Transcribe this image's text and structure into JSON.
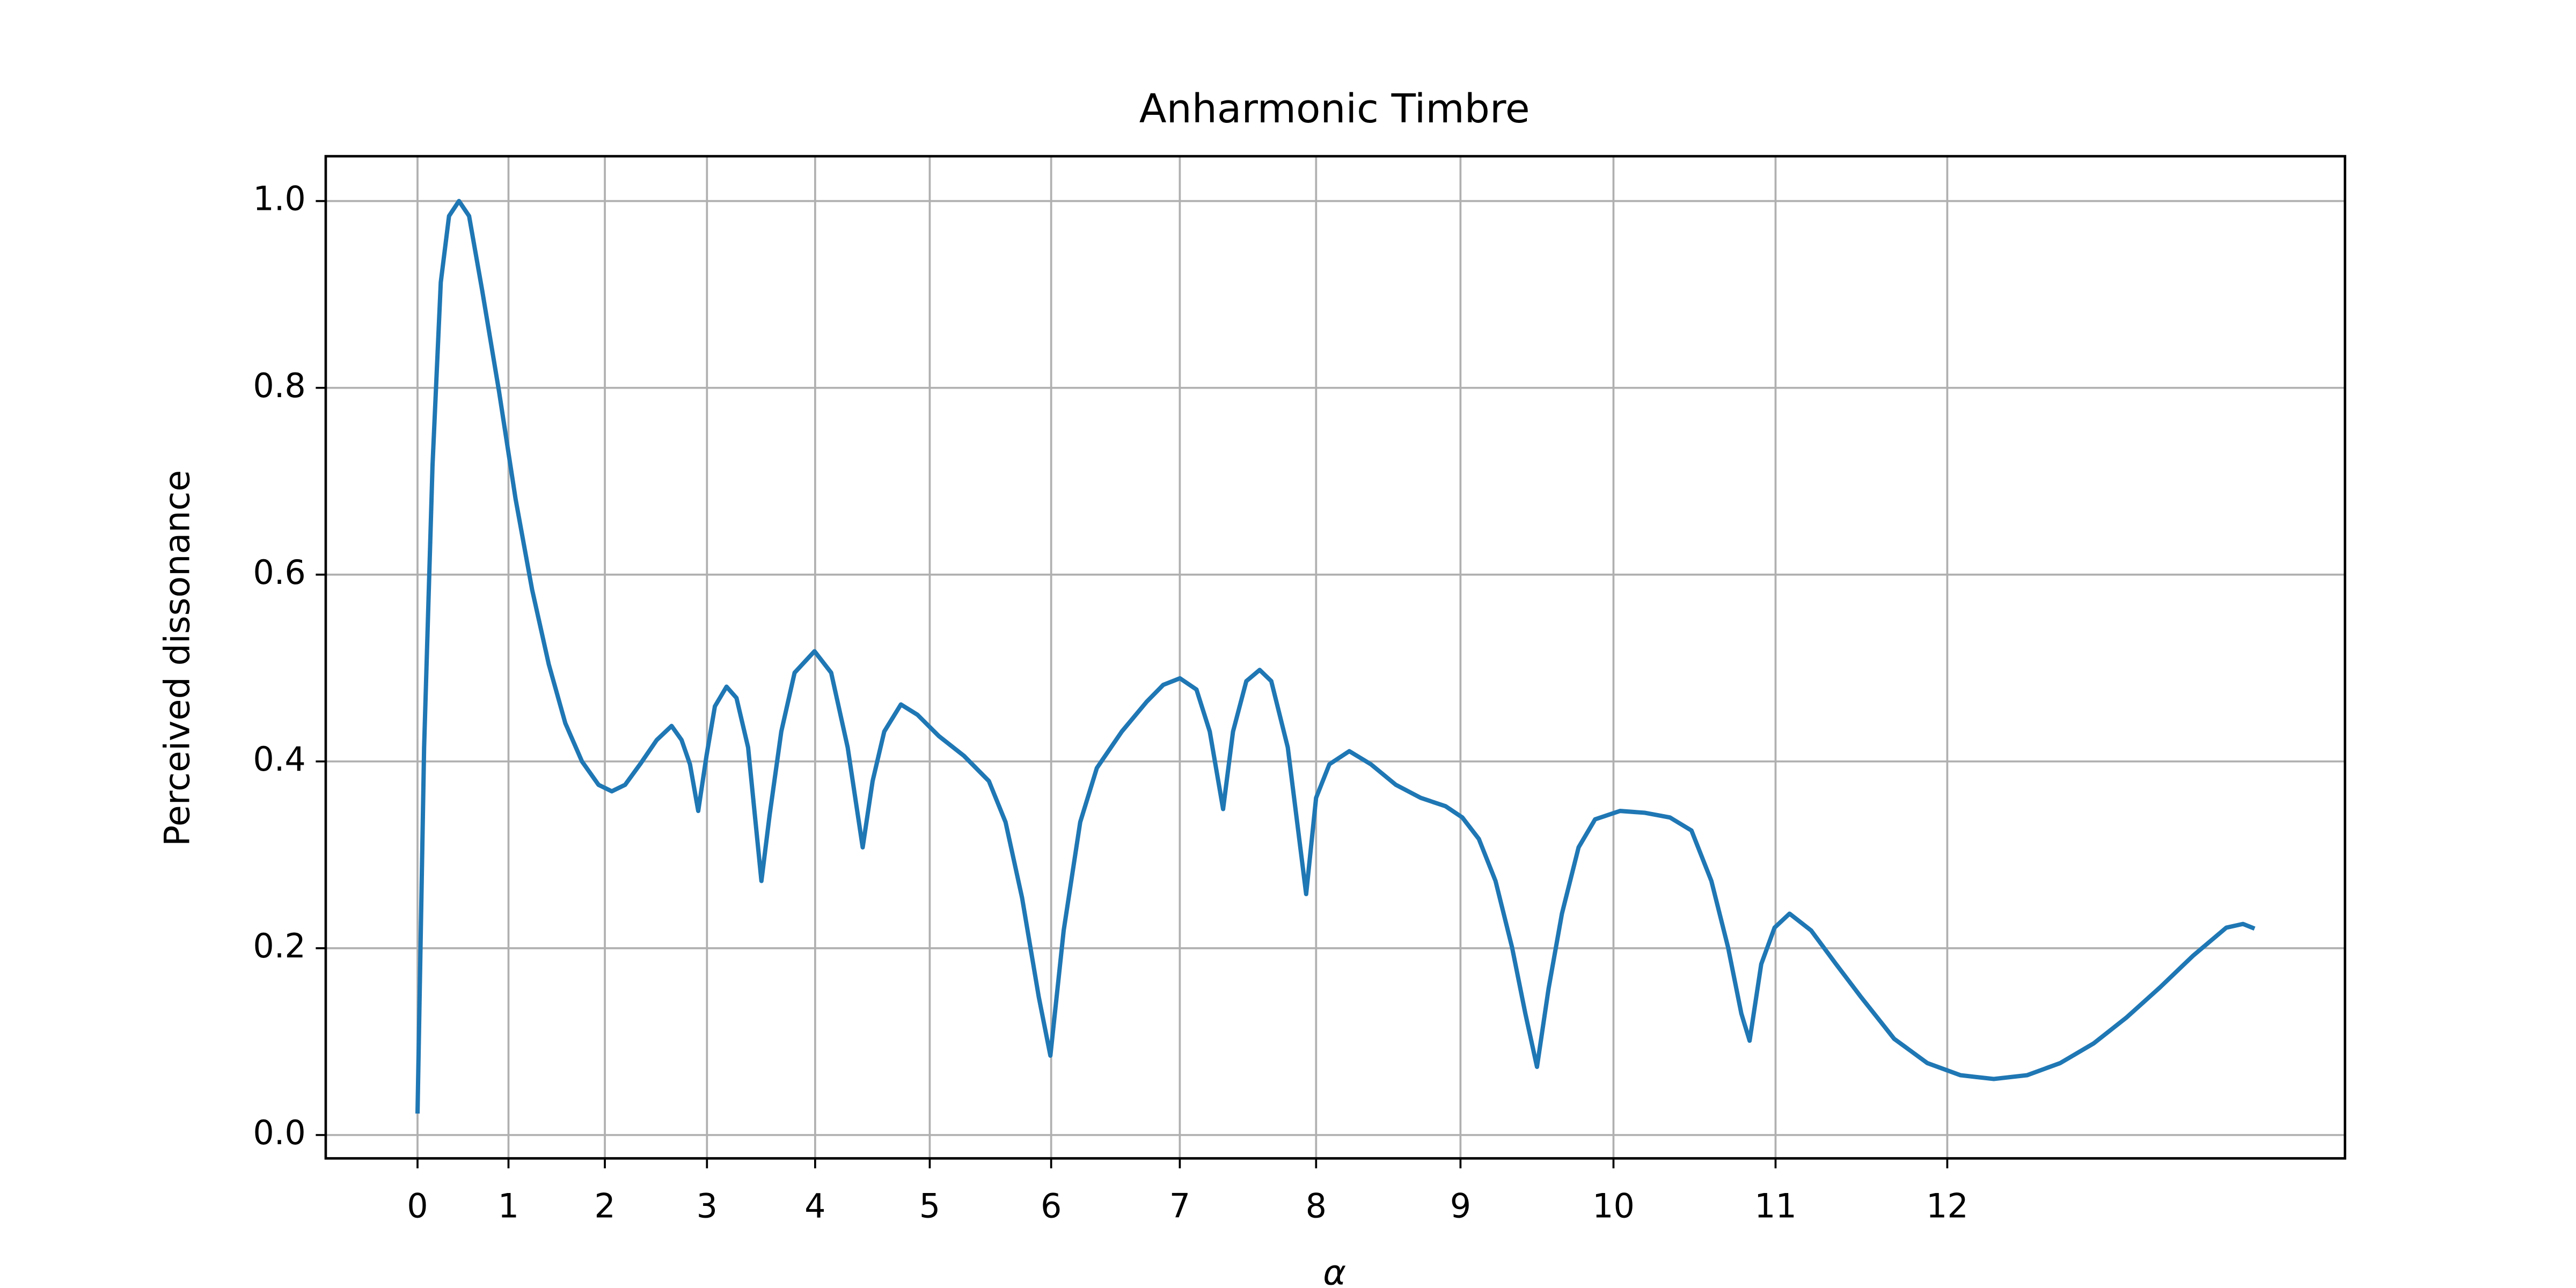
{
  "chart_data": {
    "type": "line",
    "title": "Anharmonic Timbre",
    "x_label": "α",
    "y_label": "Perceived dissonance",
    "x": [
      1.0,
      1.0043,
      1.0098,
      1.0152,
      1.0206,
      1.0271,
      1.0337,
      1.0423,
      1.0532,
      1.0641,
      1.0749,
      1.0858,
      1.0966,
      1.1075,
      1.1183,
      1.127,
      1.1357,
      1.1455,
      1.1564,
      1.1661,
      1.1726,
      1.1781,
      1.1835,
      1.1889,
      1.1944,
      1.202,
      1.2085,
      1.2161,
      1.2248,
      1.2302,
      1.2378,
      1.2465,
      1.2595,
      1.2704,
      1.2812,
      1.291,
      1.2975,
      1.3051,
      1.316,
      1.3268,
      1.3409,
      1.3572,
      1.3735,
      1.3844,
      1.3952,
      1.4061,
      1.4137,
      1.4224,
      1.4332,
      1.4441,
      1.4604,
      1.4767,
      1.4875,
      1.4984,
      1.5092,
      1.5179,
      1.5266,
      1.5331,
      1.5418,
      1.5505,
      1.5581,
      1.5689,
      1.5809,
      1.5874,
      1.5961,
      1.6091,
      1.6232,
      1.6395,
      1.6558,
      1.6721,
      1.683,
      1.6938,
      1.7047,
      1.7155,
      1.7242,
      1.7318,
      1.7394,
      1.7481,
      1.759,
      1.7698,
      1.7861,
      1.8024,
      1.8187,
      1.8328,
      1.8458,
      1.8567,
      1.8654,
      1.8708,
      1.8784,
      1.8871,
      1.8969,
      1.911,
      1.9273,
      1.9435,
      1.9653,
      1.987,
      2.0087,
      2.0304,
      2.0521,
      2.0738,
      2.0956,
      2.1173,
      2.139,
      2.1607,
      2.1824,
      2.1933,
      2.2009
    ],
    "series": [
      {
        "name": "Perceived dissonance",
        "color": "#1f77b4",
        "values": [
          0.023,
          0.415,
          0.717,
          0.913,
          0.984,
          1.0,
          0.984,
          0.904,
          0.797,
          0.681,
          0.584,
          0.504,
          0.441,
          0.4,
          0.375,
          0.368,
          0.375,
          0.397,
          0.423,
          0.438,
          0.423,
          0.397,
          0.347,
          0.406,
          0.459,
          0.48,
          0.468,
          0.415,
          0.272,
          0.343,
          0.432,
          0.495,
          0.518,
          0.495,
          0.415,
          0.308,
          0.379,
          0.432,
          0.461,
          0.45,
          0.427,
          0.406,
          0.379,
          0.335,
          0.254,
          0.148,
          0.085,
          0.219,
          0.335,
          0.393,
          0.432,
          0.464,
          0.482,
          0.489,
          0.477,
          0.432,
          0.349,
          0.432,
          0.486,
          0.498,
          0.486,
          0.415,
          0.258,
          0.361,
          0.397,
          0.411,
          0.397,
          0.375,
          0.361,
          0.352,
          0.34,
          0.317,
          0.272,
          0.201,
          0.13,
          0.073,
          0.157,
          0.237,
          0.308,
          0.338,
          0.347,
          0.345,
          0.34,
          0.326,
          0.272,
          0.201,
          0.13,
          0.101,
          0.183,
          0.222,
          0.237,
          0.219,
          0.183,
          0.148,
          0.103,
          0.077,
          0.064,
          0.06,
          0.064,
          0.077,
          0.098,
          0.126,
          0.158,
          0.192,
          0.222,
          0.226,
          0.221
        ]
      }
    ],
    "xlim": [
      0.94,
      2.26
    ],
    "ylim": [
      -0.025,
      1.048
    ],
    "xticks": [
      {
        "value": 1.0,
        "label": "0"
      },
      {
        "value": 1.05946,
        "label": "1"
      },
      {
        "value": 1.12246,
        "label": "2"
      },
      {
        "value": 1.18921,
        "label": "3"
      },
      {
        "value": 1.25992,
        "label": "4"
      },
      {
        "value": 1.33484,
        "label": "5"
      },
      {
        "value": 1.41421,
        "label": "6"
      },
      {
        "value": 1.49831,
        "label": "7"
      },
      {
        "value": 1.5874,
        "label": "8"
      },
      {
        "value": 1.68179,
        "label": "9"
      },
      {
        "value": 1.7818,
        "label": "10"
      },
      {
        "value": 1.88775,
        "label": "11"
      },
      {
        "value": 2.0,
        "label": "12"
      }
    ],
    "yticks": [
      {
        "value": 0,
        "label": "0.0"
      },
      {
        "value": 0.2,
        "label": "0.2"
      },
      {
        "value": 0.4,
        "label": "0.4"
      },
      {
        "value": 0.6,
        "label": "0.6"
      },
      {
        "value": 0.8,
        "label": "0.8"
      },
      {
        "value": 1.0,
        "label": "1.0"
      }
    ],
    "grid": true
  }
}
